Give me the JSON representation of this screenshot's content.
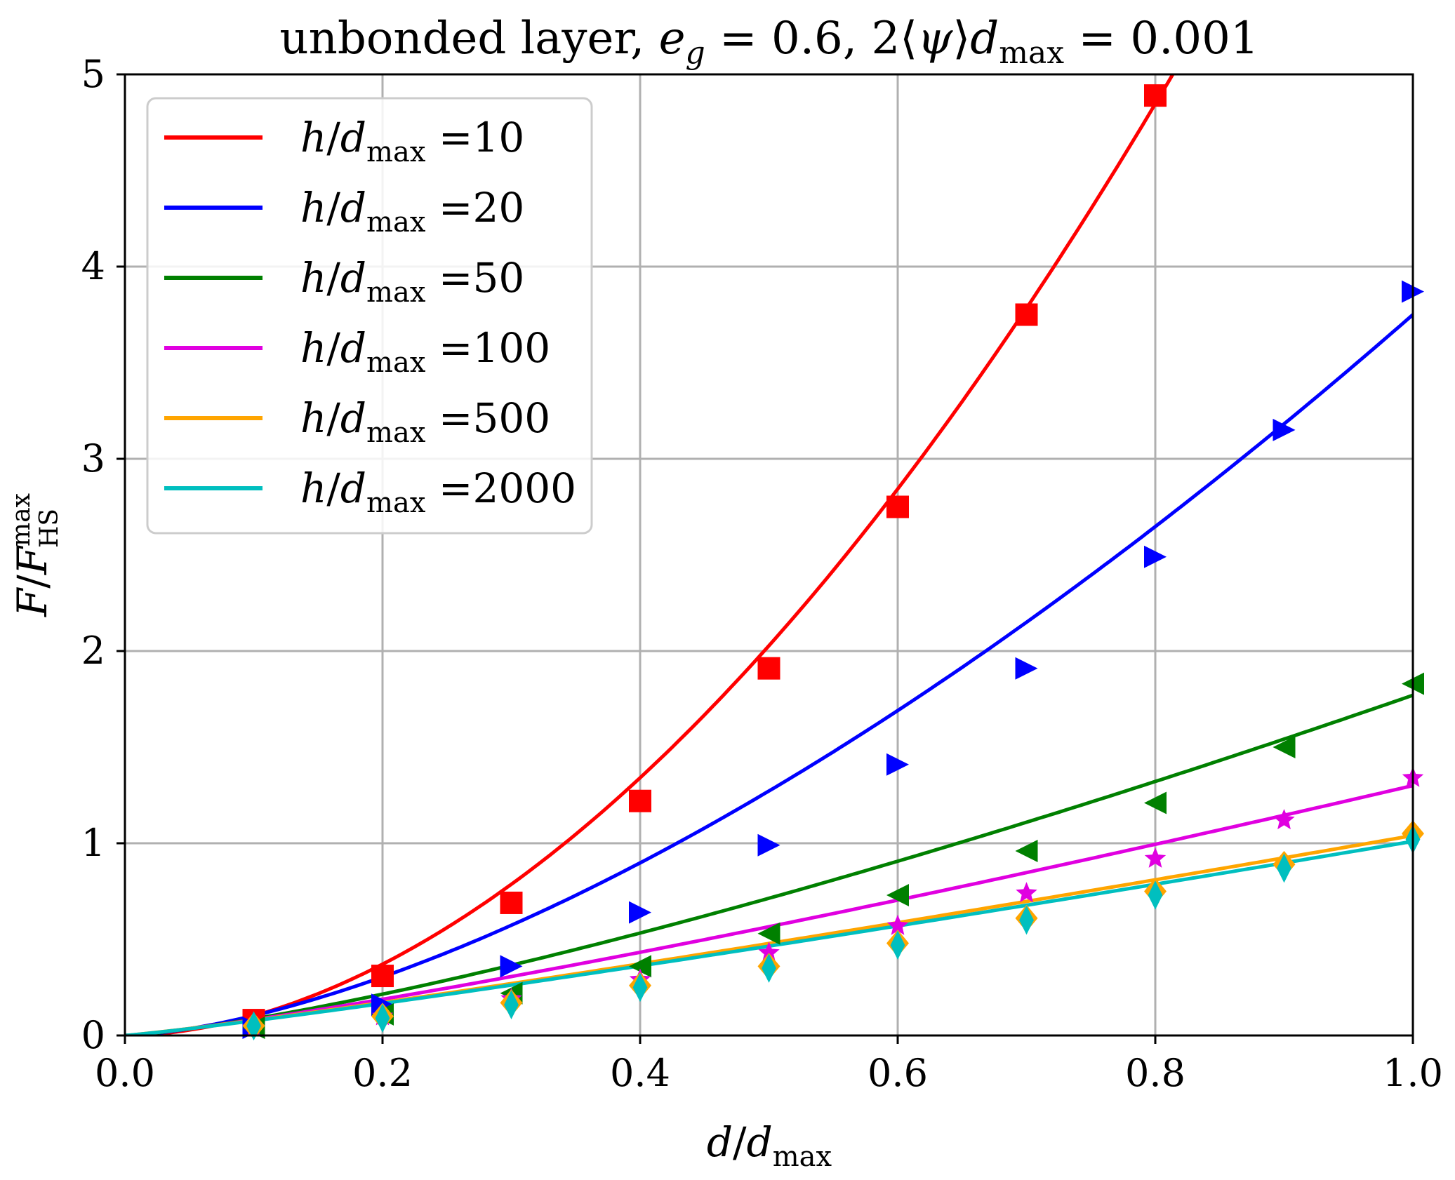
{
  "chart_data": {
    "type": "line",
    "title": {
      "prefix": "unbonded layer, ",
      "e_sym": "e",
      "e_sub": "g",
      "e_val": " = 0.6, 2⟨",
      "psi": "ψ",
      "psi_close": "⟩",
      "d_sym": "d",
      "d_sub": "max",
      "d_val": " = 0.001"
    },
    "xlabel": {
      "sym": "d",
      "slash": "/",
      "sym2": "d",
      "sub": "max"
    },
    "ylabel": {
      "sym": "F",
      "slash": "/",
      "sym2": "F",
      "sub": "HS",
      "sup": "max"
    },
    "xlim": [
      0.0,
      1.0
    ],
    "ylim": [
      0,
      5
    ],
    "xticks": [
      0.0,
      0.2,
      0.4,
      0.6,
      0.8,
      1.0
    ],
    "xtick_labels": [
      "0.0",
      "0.2",
      "0.4",
      "0.6",
      "0.8",
      "1.0"
    ],
    "yticks": [
      0,
      1,
      2,
      3,
      4,
      5
    ],
    "ytick_labels": [
      "0",
      "1",
      "2",
      "3",
      "4",
      "5"
    ],
    "grid": true,
    "legend_position": "top-left",
    "legend_prefix": {
      "sym": "h",
      "slash": "/",
      "sym2": "d",
      "sub": "max",
      "eq": " ="
    },
    "series": [
      {
        "name": "h/d_max =10",
        "value_label": "10",
        "color": "#ff0000",
        "marker": "square",
        "fit_coef": 7.33,
        "fit_exp": 1.854,
        "x": [
          0.1,
          0.2,
          0.3,
          0.4,
          0.5,
          0.6,
          0.7,
          0.8
        ],
        "y": [
          0.08,
          0.31,
          0.69,
          1.22,
          1.91,
          2.75,
          3.75,
          4.89
        ]
      },
      {
        "name": "h/d_max =20",
        "value_label": "20",
        "color": "#0000ff",
        "marker": "triangle-right",
        "fit_coef": 3.75,
        "fit_exp": 1.56,
        "x": [
          0.1,
          0.2,
          0.3,
          0.4,
          0.5,
          0.6,
          0.7,
          0.8,
          0.9,
          1.0
        ],
        "y": [
          0.04,
          0.16,
          0.36,
          0.64,
          0.99,
          1.41,
          1.91,
          2.49,
          3.15,
          3.87
        ]
      },
      {
        "name": "h/d_max =50",
        "value_label": "50",
        "color": "#008000",
        "marker": "triangle-left",
        "fit_coef": 1.77,
        "fit_exp": 1.31,
        "x": [
          0.1,
          0.2,
          0.3,
          0.4,
          0.5,
          0.6,
          0.7,
          0.8,
          0.9,
          1.0
        ],
        "y": [
          0.04,
          0.11,
          0.22,
          0.36,
          0.53,
          0.73,
          0.96,
          1.21,
          1.5,
          1.83
        ]
      },
      {
        "name": "h/d_max =100",
        "value_label": "100",
        "color": "#e000e0",
        "marker": "star",
        "fit_coef": 1.3,
        "fit_exp": 1.2,
        "x": [
          0.1,
          0.2,
          0.3,
          0.4,
          0.5,
          0.6,
          0.7,
          0.8,
          0.9,
          1.0
        ],
        "y": [
          0.04,
          0.1,
          0.19,
          0.29,
          0.43,
          0.57,
          0.74,
          0.92,
          1.12,
          1.34
        ]
      },
      {
        "name": "h/d_max =500",
        "value_label": "500",
        "color": "#ffa500",
        "marker": "diamond",
        "fit_coef": 1.04,
        "fit_exp": 1.12,
        "x": [
          0.1,
          0.2,
          0.3,
          0.4,
          0.5,
          0.6,
          0.7,
          0.8,
          0.9,
          1.0
        ],
        "y": [
          0.05,
          0.1,
          0.17,
          0.26,
          0.36,
          0.48,
          0.61,
          0.75,
          0.89,
          1.05
        ]
      },
      {
        "name": "h/d_max =2000",
        "value_label": "2000",
        "color": "#00bfbf",
        "marker": "thin-diamond",
        "fit_coef": 1.01,
        "fit_exp": 1.12,
        "x": [
          0.1,
          0.2,
          0.3,
          0.4,
          0.5,
          0.6,
          0.7,
          0.8,
          0.9,
          1.0
        ],
        "y": [
          0.05,
          0.09,
          0.16,
          0.25,
          0.35,
          0.47,
          0.6,
          0.73,
          0.87,
          1.02
        ]
      }
    ]
  }
}
